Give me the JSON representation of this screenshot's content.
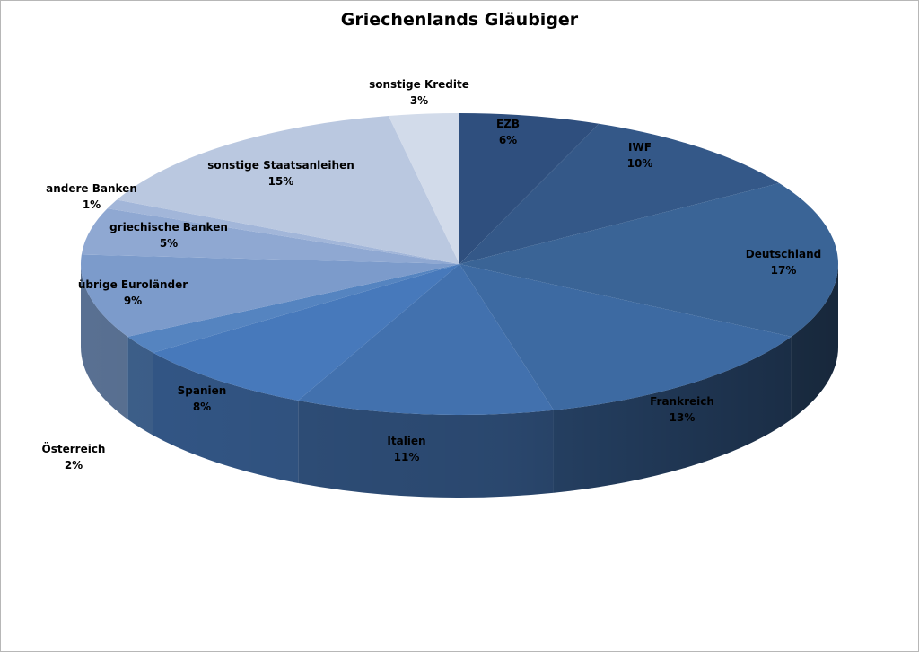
{
  "chart_data": {
    "type": "pie",
    "title": "Griechenlands Gläubiger",
    "slices": [
      {
        "label": "EZB",
        "value": 6,
        "pct_label": "6%"
      },
      {
        "label": "IWF",
        "value": 10,
        "pct_label": "10%"
      },
      {
        "label": "Deutschland",
        "value": 17,
        "pct_label": "17%"
      },
      {
        "label": "Frankreich",
        "value": 13,
        "pct_label": "13%"
      },
      {
        "label": "Italien",
        "value": 11,
        "pct_label": "11%"
      },
      {
        "label": "Spanien",
        "value": 8,
        "pct_label": "8%"
      },
      {
        "label": "Österreich",
        "value": 2,
        "pct_label": "2%"
      },
      {
        "label": "übrige Euroländer",
        "value": 9,
        "pct_label": "9%"
      },
      {
        "label": "griechische Banken",
        "value": 5,
        "pct_label": "5%"
      },
      {
        "label": "andere Banken",
        "value": 1,
        "pct_label": "1%"
      },
      {
        "label": "sonstige Staatsanleihen",
        "value": 15,
        "pct_label": "15%"
      },
      {
        "label": "sonstige Kredite",
        "value": 3,
        "pct_label": "3%"
      }
    ],
    "colors": [
      "#2f4f7e",
      "#345888",
      "#3a6496",
      "#3d6aa2",
      "#4271ae",
      "#4779bb",
      "#5584c0",
      "#7c9bcb",
      "#8fa8d2",
      "#a2b6d9",
      "#bac8e0",
      "#d2dbea"
    ],
    "legend": "none",
    "style": "3d"
  }
}
